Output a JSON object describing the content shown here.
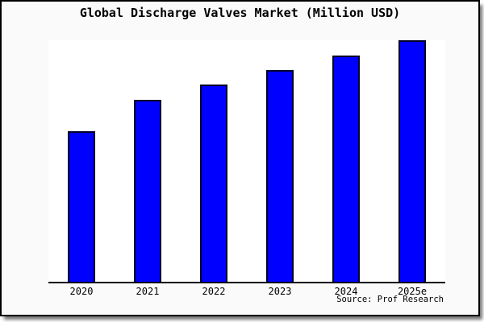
{
  "window": {
    "canvas_background": "#fafafa",
    "plot_background": "#ffffff",
    "frame_border_color": "#000000"
  },
  "chart_data": {
    "type": "bar",
    "title": "Global Discharge Valves Market (Million USD)",
    "categories": [
      "2020",
      "2021",
      "2022",
      "2023",
      "2024",
      "2025e"
    ],
    "values": [
      188,
      227,
      246,
      264,
      282,
      301
    ],
    "values_note": "no y-axis scale shown in image; values are estimated relative bar heights (relative ratio approx 100 : 121 : 131 : 140 : 150 : 160)",
    "xlabel": "",
    "ylabel": "",
    "ylim": [
      0,
      301
    ],
    "grid": false,
    "legend": false,
    "bar_color": "#0000ff",
    "bar_edge_color": "#000028",
    "axis_line_color": "#000000",
    "source_label": "Source: Prof Research"
  }
}
